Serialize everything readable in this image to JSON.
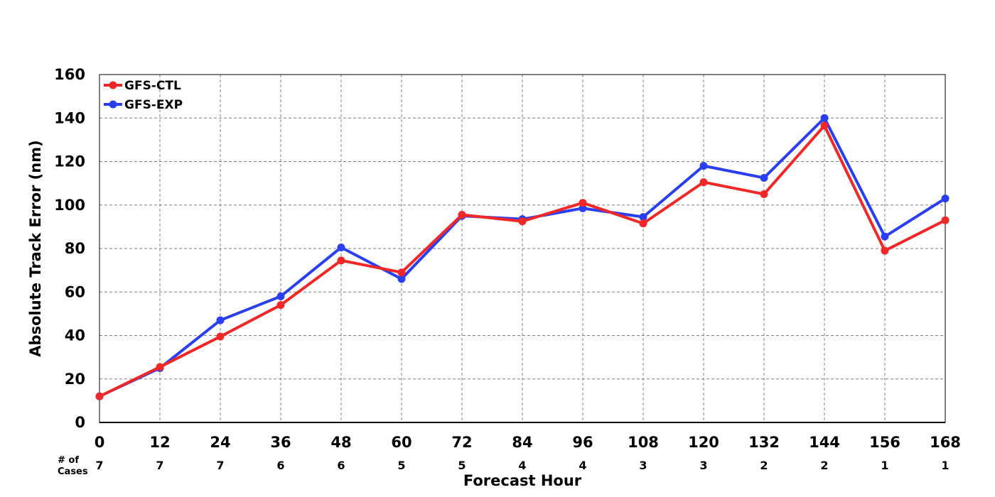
{
  "chart_data": {
    "type": "line",
    "title": "",
    "xlabel": "Forecast Hour",
    "ylabel": "Absolute Track Error (nm)",
    "x": [
      0,
      12,
      24,
      36,
      48,
      60,
      72,
      84,
      96,
      108,
      120,
      132,
      144,
      156,
      168
    ],
    "x_tick_labels": [
      "0",
      "12",
      "24",
      "36",
      "48",
      "60",
      "72",
      "84",
      "96",
      "108",
      "120",
      "132",
      "144",
      "156",
      "168"
    ],
    "y_ticks": [
      0,
      20,
      40,
      60,
      80,
      100,
      120,
      140,
      160
    ],
    "ylim": [
      0,
      160
    ],
    "xlim": [
      0,
      168
    ],
    "grid": true,
    "legend_position": "top-left",
    "cases_header": [
      "# of",
      "Cases"
    ],
    "cases": [
      "7",
      "7",
      "7",
      "6",
      "6",
      "5",
      "5",
      "4",
      "4",
      "3",
      "3",
      "2",
      "2",
      "1",
      "1"
    ],
    "series": [
      {
        "name": "GFS-CTL",
        "color": "#f22828",
        "values": [
          12,
          25.5,
          39.5,
          54,
          74.5,
          69,
          95.5,
          92.5,
          101,
          91.5,
          110.5,
          105,
          136.5,
          79,
          93
        ]
      },
      {
        "name": "GFS-EXP",
        "color": "#2a3ff2",
        "values": [
          12,
          25,
          47,
          58,
          80.5,
          66,
          95,
          93.5,
          98.5,
          94.5,
          118,
          112.5,
          140,
          85.5,
          103
        ]
      }
    ]
  }
}
